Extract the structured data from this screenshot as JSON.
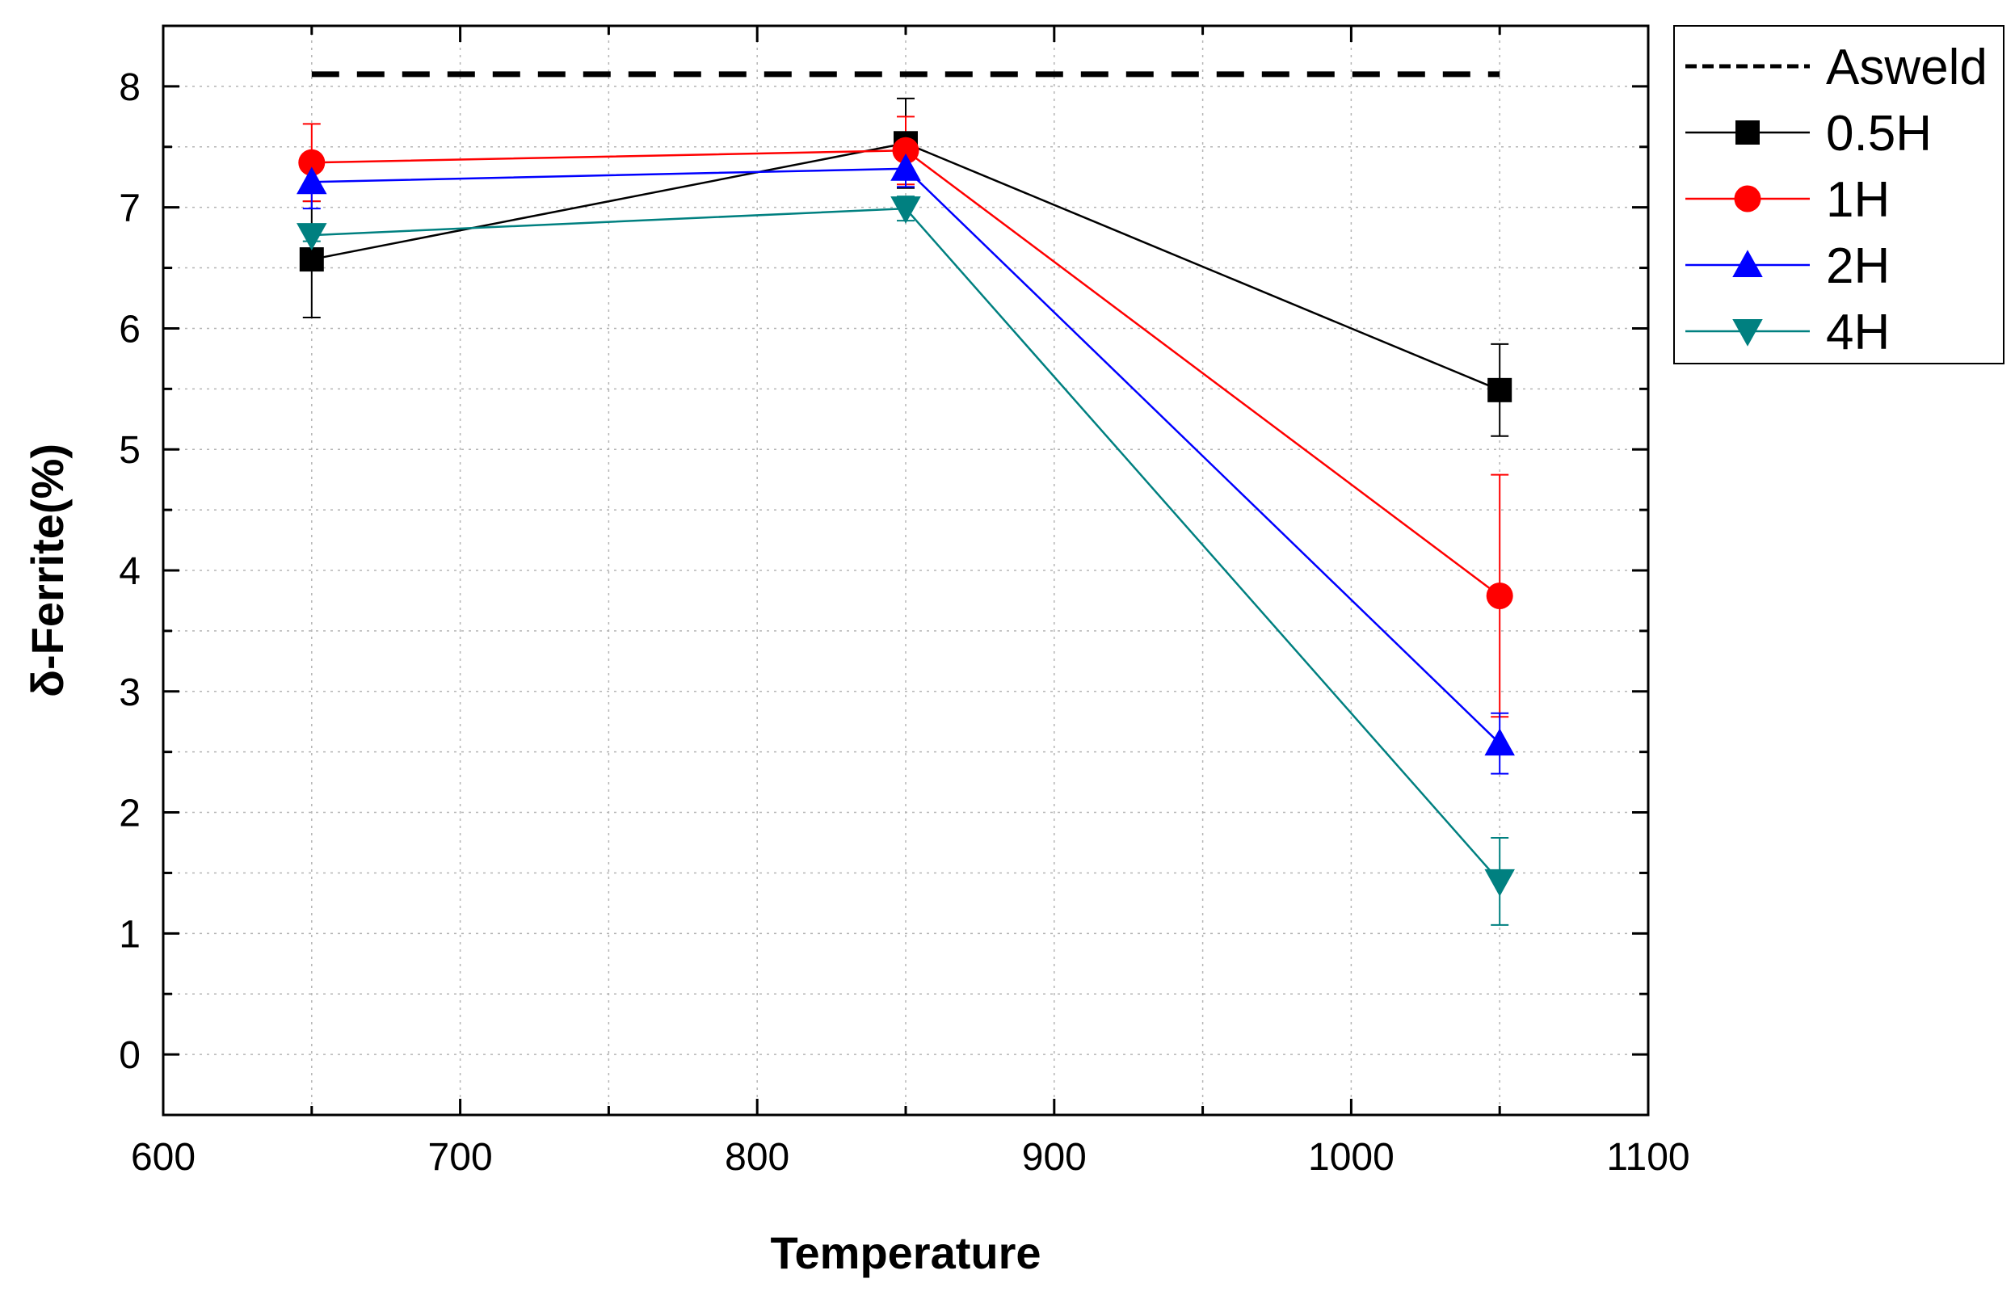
{
  "chart_data": {
    "type": "line",
    "title": "",
    "xlabel": "Temperature",
    "ylabel": "δ-Ferrite(%)",
    "xlim": [
      600,
      1100
    ],
    "ylim": [
      -0.5,
      8.5
    ],
    "x_ticks": [
      600,
      700,
      800,
      900,
      1000,
      1100
    ],
    "y_ticks": [
      0,
      1,
      2,
      3,
      4,
      5,
      6,
      7,
      8
    ],
    "grid": true,
    "legend_position": "top-right outside",
    "reference": {
      "name": "Asweld",
      "value": 8.1,
      "x_range": [
        650,
        1050
      ],
      "color": "#000000",
      "style": "dashed"
    },
    "series": [
      {
        "name": "0.5H",
        "color": "#000000",
        "marker": "square",
        "x": [
          650,
          850,
          1050
        ],
        "y": [
          6.57,
          7.53,
          5.49
        ],
        "err": [
          0.48,
          0.37,
          0.38
        ]
      },
      {
        "name": "1H",
        "color": "#ff0000",
        "marker": "circle",
        "x": [
          650,
          850,
          1050
        ],
        "y": [
          7.37,
          7.47,
          3.79
        ],
        "err": [
          0.32,
          0.28,
          1.0
        ]
      },
      {
        "name": "2H",
        "color": "#0000ff",
        "marker": "triangle-up",
        "x": [
          650,
          850,
          1050
        ],
        "y": [
          7.21,
          7.32,
          2.57
        ],
        "err": [
          0.22,
          0.15,
          0.25
        ]
      },
      {
        "name": "4H",
        "color": "#008080",
        "marker": "triangle-down",
        "x": [
          650,
          850,
          1050
        ],
        "y": [
          6.77,
          6.99,
          1.43
        ],
        "err": [
          0.05,
          0.1,
          0.36
        ]
      }
    ]
  }
}
